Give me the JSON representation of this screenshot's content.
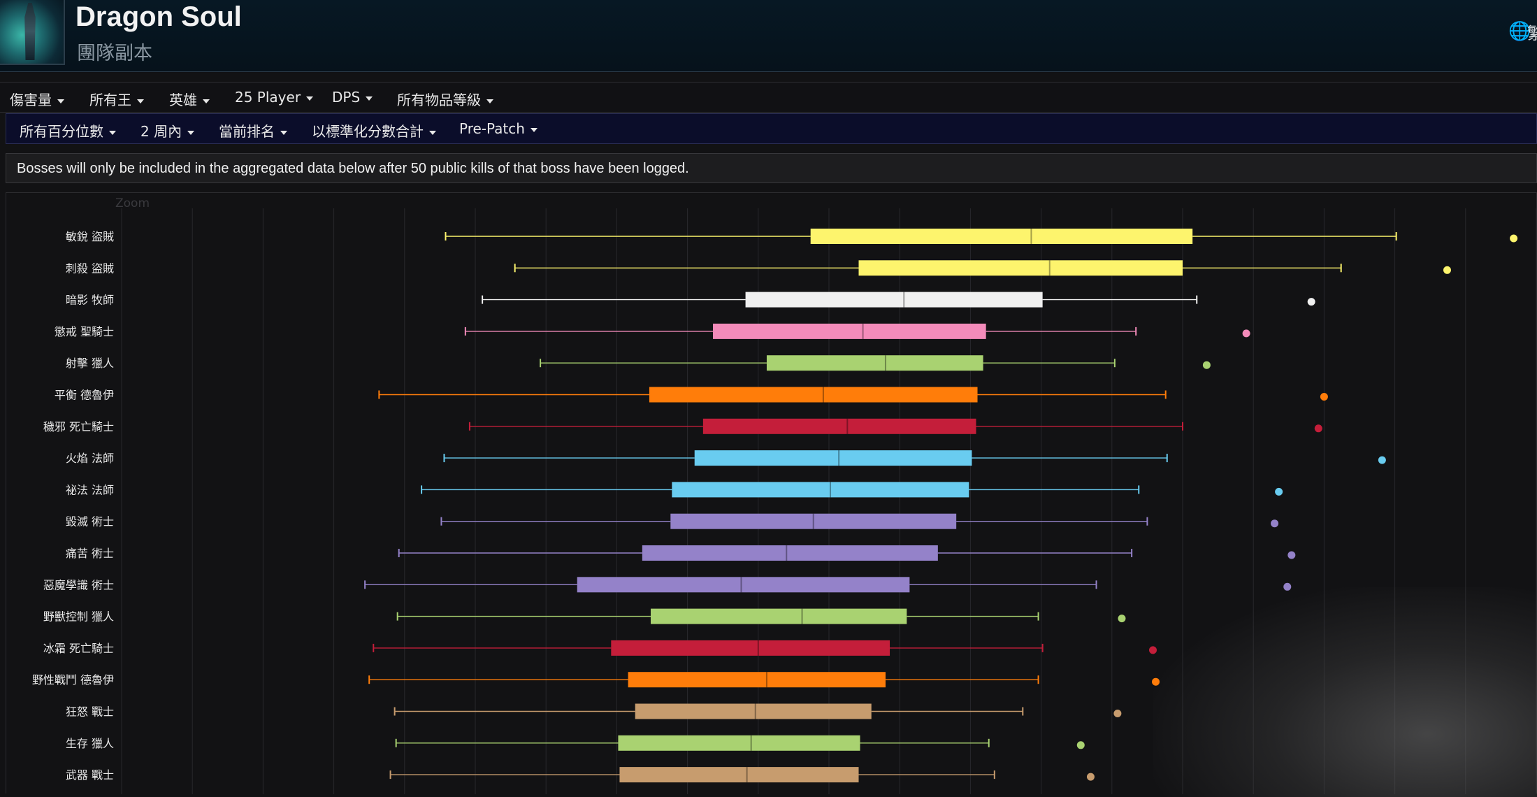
{
  "header": {
    "title": "Dragon Soul",
    "subtitle": "團隊副本",
    "globe_icon": "globe-icon",
    "language_label_partial": "繁"
  },
  "filters_row1": [
    {
      "label": "傷害量"
    },
    {
      "label": "所有王"
    },
    {
      "label": "英雄"
    },
    {
      "label": "25 Player"
    },
    {
      "label": "DPS"
    },
    {
      "label": "所有物品等級"
    }
  ],
  "filters_row2": [
    {
      "label": "所有百分位數"
    },
    {
      "label": "2 周內"
    },
    {
      "label": "當前排名"
    },
    {
      "label": "以標準化分數合計"
    },
    {
      "label": "Pre-Patch"
    }
  ],
  "notice": "Bosses will only be included in the aggregated data below after 50 public kills of that boss have been logged.",
  "chart_zoom_label": "Zoom",
  "chart_data": {
    "type": "boxplot",
    "orientation": "horizontal",
    "title": "",
    "xlabel": "",
    "ylabel": "",
    "xlim": [
      0,
      1000
    ],
    "grid": true,
    "x_labels_visible": false,
    "series": [
      {
        "name": "敏銳 盜賊",
        "color": "#fdf46d",
        "low": 229,
        "q1": 487,
        "median": 643,
        "q3": 757,
        "high": 901,
        "outlier": 984
      },
      {
        "name": "刺殺 盜賊",
        "color": "#fdf46d",
        "low": 278,
        "q1": 521,
        "median": 656,
        "q3": 750,
        "high": 862,
        "outlier": 937
      },
      {
        "name": "暗影 牧師",
        "color": "#f0f0f0",
        "low": 255,
        "q1": 441,
        "median": 553,
        "q3": 651,
        "high": 760,
        "outlier": 841
      },
      {
        "name": "懲戒 聖騎士",
        "color": "#f38bba",
        "low": 243,
        "q1": 418,
        "median": 524,
        "q3": 611,
        "high": 717,
        "outlier": 795
      },
      {
        "name": "射擊 獵人",
        "color": "#a9d271",
        "low": 296,
        "q1": 456,
        "median": 540,
        "q3": 609,
        "high": 702,
        "outlier": 767
      },
      {
        "name": "平衡 德魯伊",
        "color": "#ff7d0a",
        "low": 182,
        "q1": 373,
        "median": 496,
        "q3": 605,
        "high": 738,
        "outlier": 850
      },
      {
        "name": "穢邪 死亡騎士",
        "color": "#c41e3a",
        "low": 246,
        "q1": 411,
        "median": 513,
        "q3": 604,
        "high": 750,
        "outlier": 846
      },
      {
        "name": "火焰 法師",
        "color": "#69ccf0",
        "low": 228,
        "q1": 405,
        "median": 507,
        "q3": 601,
        "high": 739,
        "outlier": 891
      },
      {
        "name": "祕法 法師",
        "color": "#69ccf0",
        "low": 212,
        "q1": 389,
        "median": 501,
        "q3": 599,
        "high": 719,
        "outlier": 818
      },
      {
        "name": "毀滅 術士",
        "color": "#9482c9",
        "low": 226,
        "q1": 388,
        "median": 489,
        "q3": 590,
        "high": 725,
        "outlier": 815
      },
      {
        "name": "痛苦 術士",
        "color": "#9482c9",
        "low": 196,
        "q1": 368,
        "median": 470,
        "q3": 577,
        "high": 714,
        "outlier": 827
      },
      {
        "name": "惡魔學識 術士",
        "color": "#9482c9",
        "low": 172,
        "q1": 322,
        "median": 438,
        "q3": 557,
        "high": 689,
        "outlier": 824
      },
      {
        "name": "野獸控制 獵人",
        "color": "#a9d271",
        "low": 195,
        "q1": 374,
        "median": 481,
        "q3": 555,
        "high": 648,
        "outlier": 707
      },
      {
        "name": "冰霜 死亡騎士",
        "color": "#c41e3a",
        "low": 178,
        "q1": 346,
        "median": 450,
        "q3": 543,
        "high": 651,
        "outlier": 729
      },
      {
        "name": "野性戰鬥 德魯伊",
        "color": "#ff7d0a",
        "low": 175,
        "q1": 358,
        "median": 456,
        "q3": 540,
        "high": 648,
        "outlier": 731
      },
      {
        "name": "狂怒 戰士",
        "color": "#c79c6e",
        "low": 193,
        "q1": 363,
        "median": 448,
        "q3": 530,
        "high": 637,
        "outlier": 704
      },
      {
        "name": "生存 獵人",
        "color": "#a9d271",
        "low": 194,
        "q1": 351,
        "median": 445,
        "q3": 522,
        "high": 613,
        "outlier": 678
      },
      {
        "name": "武器 戰士",
        "color": "#c79c6e",
        "low": 190,
        "q1": 352,
        "median": 442,
        "q3": 521,
        "high": 617,
        "outlier": 685
      }
    ]
  }
}
